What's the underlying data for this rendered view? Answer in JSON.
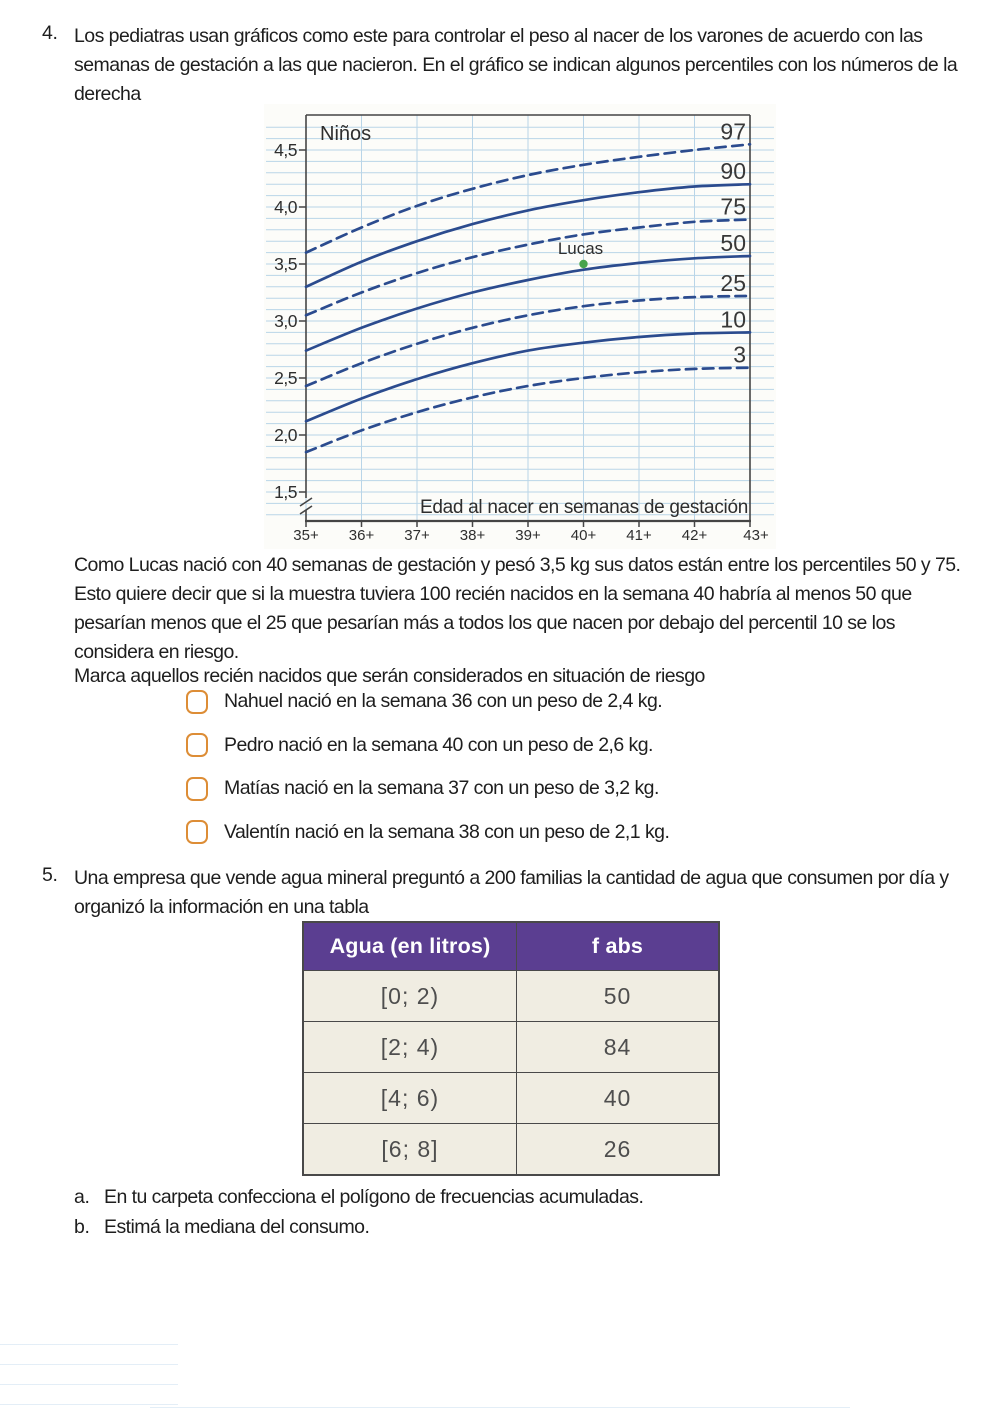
{
  "document": {
    "exercise4": {
      "number": "4.",
      "statement": "Los pediatras usan gráficos como este para controlar el peso al nacer de los varones de acuerdo con las\nsemanas de gestación a las que nacieron. En el gráfico se indican algunos percentiles con los números de la\nderecha",
      "explanation": "Como Lucas nació con 40 semanas de gestación y pesó 3,5 kg sus datos están entre los percentiles 50 y 75.\nEsto quiere decir que si la muestra tuviera 100 recién nacidos en la semana 40 habría al menos 50 que\npesarían menos que el 25 que pesarían más a todos los que nacen por debajo del percentil 10 se los\nconsidera en riesgo.",
      "instruction": "Marca aquellos recién nacidos que serán considerados en situación de riesgo",
      "checkbox_color": "#dd8d36",
      "options": [
        {
          "label": "Nahuel nació en la semana 36 con un peso de 2,4 kg.",
          "checked": false
        },
        {
          "label": "Pedro nació en la semana 40 con un peso de 2,6 kg.",
          "checked": false
        },
        {
          "label": "Matías nació en la semana 37 con un peso de 3,2 kg.",
          "checked": false
        },
        {
          "label": "Valentín nació en la semana 38 con un peso de 2,1 kg.",
          "checked": false
        }
      ]
    },
    "exercise5": {
      "number": "5.",
      "statement": "Una empresa que vende agua mineral preguntó a 200 familias la cantidad de agua que consumen por día y\norganizó la información en una tabla",
      "subitems": [
        {
          "letter": "a.",
          "text": "En tu carpeta confecciona el polígono de frecuencias acumuladas."
        },
        {
          "letter": "b.",
          "text": "Estimá la mediana del consumo."
        }
      ]
    }
  },
  "chart_data": [
    {
      "type": "line",
      "title": "Niños",
      "xlabel": "Edad al nacer en semanas de gestación",
      "ylabel": "",
      "x": [
        35,
        36,
        37,
        38,
        39,
        40,
        41,
        42,
        43
      ],
      "x_tick_labels": [
        "35+",
        "36+",
        "37+",
        "38+",
        "39+",
        "40+",
        "41+",
        "42+",
        "43+"
      ],
      "ylim": [
        1.5,
        4.85
      ],
      "y_ticks": [
        4.5,
        4.0,
        3.5,
        3.0,
        2.5,
        2.0,
        1.5
      ],
      "y_tick_labels": [
        "4,5",
        "4,0",
        "3,5",
        "3,0",
        "2,5",
        "2,0",
        "1,5"
      ],
      "grid": true,
      "axis_break_below": 1.5,
      "legend_position": "right-edge-labels",
      "series": [
        {
          "name": "97",
          "style": "dashed",
          "values": [
            3.6,
            3.82,
            4.01,
            4.16,
            4.28,
            4.37,
            4.44,
            4.5,
            4.55
          ]
        },
        {
          "name": "90",
          "style": "solid",
          "values": [
            3.3,
            3.52,
            3.7,
            3.85,
            3.97,
            4.06,
            4.13,
            4.18,
            4.2
          ]
        },
        {
          "name": "75",
          "style": "dashed",
          "values": [
            3.05,
            3.25,
            3.42,
            3.56,
            3.67,
            3.76,
            3.82,
            3.87,
            3.89
          ]
        },
        {
          "name": "50",
          "style": "solid",
          "values": [
            2.74,
            2.94,
            3.11,
            3.25,
            3.36,
            3.45,
            3.51,
            3.55,
            3.57
          ]
        },
        {
          "name": "25",
          "style": "dashed",
          "values": [
            2.43,
            2.63,
            2.8,
            2.94,
            3.05,
            3.13,
            3.18,
            3.21,
            3.22
          ]
        },
        {
          "name": "10",
          "style": "solid",
          "values": [
            2.12,
            2.32,
            2.49,
            2.63,
            2.74,
            2.81,
            2.86,
            2.89,
            2.9
          ]
        },
        {
          "name": "3",
          "style": "dashed",
          "values": [
            1.85,
            2.04,
            2.2,
            2.33,
            2.43,
            2.5,
            2.55,
            2.58,
            2.59
          ]
        }
      ],
      "annotation_point": {
        "label": "Lucas",
        "x": 40,
        "y": 3.5
      },
      "colors": {
        "background": "#fcfcf9",
        "grid": "#b9d5e8",
        "axis": "#454545",
        "curve": "#2b4b8e",
        "text": "#2e2e2e",
        "percentile_label": "#383838",
        "point": "#46a34c"
      }
    },
    {
      "type": "table",
      "headers": [
        "Agua (en litros)",
        "f abs"
      ],
      "rows": [
        [
          "[0; 2)",
          "50"
        ],
        [
          "[2; 4)",
          "84"
        ],
        [
          "[4; 6)",
          "40"
        ],
        [
          "[6; 8]",
          "26"
        ]
      ],
      "colors": {
        "header_bg": "#5b3e91",
        "header_text": "#ffffff",
        "body_bg": "#f0ede2",
        "border": "#494949",
        "body_text": "#4e4e4e"
      }
    }
  ]
}
